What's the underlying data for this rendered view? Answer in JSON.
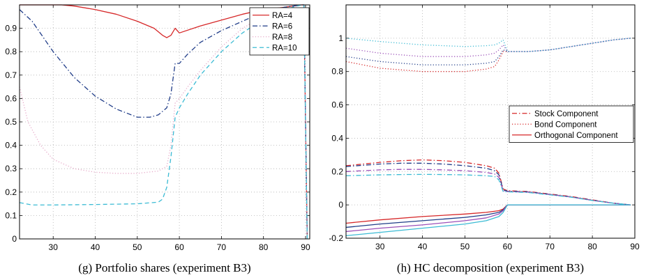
{
  "chart_data": [
    {
      "type": "line",
      "caption": "(g) Portfolio shares (experiment B3)",
      "title": "",
      "xlabel": "",
      "ylabel": "",
      "xlim": [
        22,
        91
      ],
      "ylim": [
        0,
        1
      ],
      "xticks": [
        30,
        40,
        50,
        60,
        70,
        80,
        90
      ],
      "yticks": [
        0,
        0.1,
        0.2,
        0.3,
        0.4,
        0.5,
        0.6,
        0.7,
        0.8,
        0.9
      ],
      "grid": true,
      "legend_position": "top-right",
      "series": [
        {
          "name": "RA=4",
          "color": "#d62728",
          "dash": "solid",
          "x": [
            22,
            32,
            35,
            40,
            45,
            50,
            54,
            56,
            57,
            58,
            59,
            60,
            65,
            70,
            75,
            80,
            85,
            89,
            89.6,
            90,
            90.4
          ],
          "y": [
            1.0,
            1.0,
            0.995,
            0.98,
            0.96,
            0.93,
            0.9,
            0.87,
            0.86,
            0.87,
            0.9,
            0.88,
            0.91,
            0.935,
            0.96,
            0.98,
            0.99,
            1.0,
            1.0,
            0.5,
            0.0
          ]
        },
        {
          "name": "RA=6",
          "color": "#1f3c88",
          "dash": "dashdot",
          "x": [
            22,
            25,
            30,
            35,
            40,
            45,
            50,
            53,
            55,
            57,
            58,
            59,
            60,
            62,
            65,
            70,
            75,
            80,
            85,
            89,
            89.6,
            90,
            90.4
          ],
          "y": [
            0.98,
            0.93,
            0.8,
            0.69,
            0.61,
            0.555,
            0.52,
            0.52,
            0.53,
            0.56,
            0.62,
            0.75,
            0.75,
            0.79,
            0.84,
            0.89,
            0.93,
            0.97,
            0.99,
            1.0,
            1.0,
            0.5,
            0.0
          ]
        },
        {
          "name": "RA=8",
          "color": "#e6a8c8",
          "dash": "dotted",
          "x": [
            22,
            24,
            27,
            30,
            35,
            40,
            45,
            50,
            55,
            57,
            58,
            59,
            60,
            62,
            65,
            70,
            75,
            80,
            85,
            89,
            89.6,
            90,
            90.4
          ],
          "y": [
            0.65,
            0.5,
            0.4,
            0.34,
            0.3,
            0.285,
            0.28,
            0.28,
            0.29,
            0.31,
            0.4,
            0.58,
            0.6,
            0.65,
            0.72,
            0.82,
            0.9,
            0.95,
            0.98,
            1.0,
            1.0,
            0.5,
            0.0
          ]
        },
        {
          "name": "RA=10",
          "color": "#3bbbd4",
          "dash": "dashed",
          "x": [
            22,
            25,
            30,
            40,
            50,
            55,
            56,
            57,
            58,
            59,
            60,
            62,
            65,
            70,
            75,
            80,
            85,
            89,
            89.6,
            90,
            90.4
          ],
          "y": [
            0.155,
            0.145,
            0.145,
            0.147,
            0.15,
            0.157,
            0.17,
            0.22,
            0.35,
            0.52,
            0.56,
            0.62,
            0.7,
            0.8,
            0.88,
            0.94,
            0.98,
            1.0,
            1.0,
            0.5,
            0.0
          ]
        }
      ]
    },
    {
      "type": "line",
      "caption": "(h) HC decomposition (experiment B3)",
      "title": "",
      "xlabel": "",
      "ylabel": "",
      "xlim": [
        22,
        90
      ],
      "ylim": [
        -0.2,
        1.2
      ],
      "xticks": [
        30,
        40,
        50,
        60,
        70,
        80,
        90
      ],
      "yticks": [
        -0.2,
        0,
        0.2,
        0.4,
        0.6,
        0.8,
        1
      ],
      "grid": true,
      "legend_position": "center-right",
      "legend": [
        {
          "name": "Stock Component",
          "color": "#d62728",
          "dash": "dashdot"
        },
        {
          "name": "Bond Component",
          "color": "#d62728",
          "dash": "dotted"
        },
        {
          "name": "Orthogonal Component",
          "color": "#d62728",
          "dash": "solid"
        }
      ],
      "series": [
        {
          "color": "#d62728",
          "dash": "dotted",
          "x": [
            22,
            30,
            40,
            50,
            55,
            57,
            58,
            59,
            60,
            65,
            70,
            75,
            80,
            85,
            89
          ],
          "y": [
            0.86,
            0.82,
            0.8,
            0.8,
            0.815,
            0.83,
            0.87,
            0.92,
            0.92,
            0.92,
            0.93,
            0.95,
            0.97,
            0.99,
            1.0
          ]
        },
        {
          "color": "#1f3c88",
          "dash": "dotted",
          "x": [
            22,
            30,
            40,
            50,
            55,
            57,
            58,
            59,
            60,
            65,
            70,
            75,
            80,
            85,
            89
          ],
          "y": [
            0.89,
            0.86,
            0.84,
            0.84,
            0.85,
            0.86,
            0.89,
            0.93,
            0.92,
            0.92,
            0.93,
            0.95,
            0.97,
            0.99,
            1.0
          ]
        },
        {
          "color": "#9b4fb8",
          "dash": "dotted",
          "x": [
            22,
            30,
            40,
            50,
            55,
            57,
            58,
            59,
            60,
            65,
            70,
            75,
            80,
            85,
            89
          ],
          "y": [
            0.94,
            0.91,
            0.89,
            0.89,
            0.9,
            0.91,
            0.93,
            0.96,
            0.92,
            0.92,
            0.93,
            0.95,
            0.97,
            0.99,
            1.0
          ]
        },
        {
          "color": "#3bbbd4",
          "dash": "dotted",
          "x": [
            22,
            30,
            40,
            50,
            55,
            57,
            58,
            59,
            60,
            65,
            70,
            75,
            80,
            85,
            89
          ],
          "y": [
            1.0,
            0.98,
            0.96,
            0.95,
            0.955,
            0.96,
            0.97,
            0.99,
            0.92,
            0.92,
            0.93,
            0.95,
            0.97,
            0.99,
            1.0
          ]
        },
        {
          "color": "#d62728",
          "dash": "dashdot",
          "x": [
            22,
            30,
            35,
            40,
            45,
            50,
            55,
            57,
            58,
            59,
            60,
            65,
            70,
            75,
            80,
            85,
            89
          ],
          "y": [
            0.235,
            0.255,
            0.265,
            0.27,
            0.265,
            0.255,
            0.235,
            0.22,
            0.19,
            0.095,
            0.085,
            0.08,
            0.065,
            0.05,
            0.03,
            0.01,
            0.0
          ]
        },
        {
          "color": "#1f3c88",
          "dash": "dashdot",
          "x": [
            22,
            30,
            35,
            40,
            45,
            50,
            55,
            57,
            58,
            59,
            60,
            65,
            70,
            75,
            80,
            85,
            89
          ],
          "y": [
            0.23,
            0.245,
            0.25,
            0.25,
            0.245,
            0.235,
            0.22,
            0.205,
            0.18,
            0.09,
            0.082,
            0.078,
            0.063,
            0.048,
            0.028,
            0.01,
            0.0
          ]
        },
        {
          "color": "#9b4fb8",
          "dash": "dashdot",
          "x": [
            22,
            30,
            35,
            40,
            45,
            50,
            55,
            57,
            58,
            59,
            60,
            65,
            70,
            75,
            80,
            85,
            89
          ],
          "y": [
            0.2,
            0.21,
            0.213,
            0.213,
            0.21,
            0.205,
            0.195,
            0.185,
            0.165,
            0.085,
            0.08,
            0.076,
            0.062,
            0.047,
            0.027,
            0.01,
            0.0
          ]
        },
        {
          "color": "#3bbbd4",
          "dash": "dashdot",
          "x": [
            22,
            30,
            35,
            40,
            45,
            50,
            55,
            57,
            58,
            59,
            60,
            65,
            70,
            75,
            80,
            85,
            89
          ],
          "y": [
            0.175,
            0.18,
            0.182,
            0.183,
            0.182,
            0.18,
            0.175,
            0.17,
            0.15,
            0.08,
            0.078,
            0.074,
            0.06,
            0.046,
            0.026,
            0.01,
            0.0
          ]
        },
        {
          "color": "#d62728",
          "dash": "solid",
          "x": [
            22,
            30,
            40,
            50,
            55,
            58,
            59,
            60,
            70,
            80,
            89
          ],
          "y": [
            -0.11,
            -0.09,
            -0.07,
            -0.055,
            -0.045,
            -0.035,
            -0.025,
            0.0,
            0.0,
            0.0,
            0.0
          ]
        },
        {
          "color": "#1f3c88",
          "dash": "solid",
          "x": [
            22,
            30,
            40,
            50,
            55,
            58,
            59,
            60,
            70,
            80,
            89
          ],
          "y": [
            -0.135,
            -0.115,
            -0.095,
            -0.075,
            -0.06,
            -0.045,
            -0.03,
            0.0,
            0.0,
            0.0,
            0.0
          ]
        },
        {
          "color": "#9b4fb8",
          "dash": "solid",
          "x": [
            22,
            30,
            40,
            50,
            55,
            58,
            59,
            60,
            70,
            80,
            89
          ],
          "y": [
            -0.16,
            -0.14,
            -0.12,
            -0.095,
            -0.078,
            -0.055,
            -0.035,
            0.0,
            0.0,
            0.0,
            0.0
          ]
        },
        {
          "color": "#3bbbd4",
          "dash": "solid",
          "x": [
            22,
            30,
            40,
            50,
            55,
            58,
            59,
            60,
            70,
            80,
            89
          ],
          "y": [
            -0.185,
            -0.165,
            -0.14,
            -0.115,
            -0.095,
            -0.07,
            -0.045,
            0.0,
            0.0,
            0.0,
            0.0
          ]
        }
      ]
    }
  ]
}
